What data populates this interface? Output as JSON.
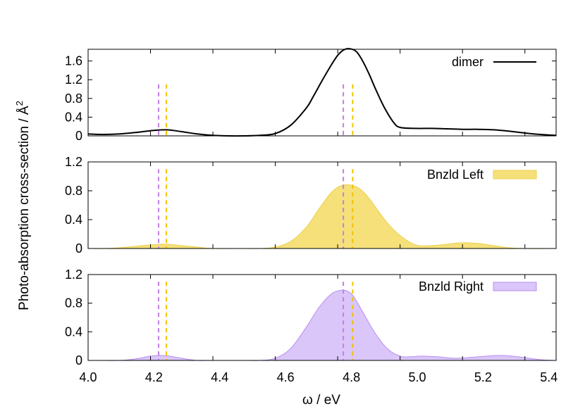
{
  "chart_data": {
    "type": "area",
    "xlabel": "ω / eV",
    "ylabel": "Photo-absorption cross-section / Å",
    "ylabel_superscript": "2",
    "xlim": [
      4.0,
      5.5
    ],
    "xticks": [
      "4.0",
      "4.2",
      "4.4",
      "4.6",
      "4.8",
      "5.0",
      "5.2",
      "5.4"
    ],
    "grid": false,
    "markers": {
      "colors": [
        "#c080e8",
        "#f2c200"
      ],
      "x": [
        4.226,
        4.251,
        4.818,
        4.848
      ],
      "pairs": [
        [
          4.226,
          4.251
        ],
        [
          4.818,
          4.848
        ]
      ]
    },
    "panels": [
      {
        "series_name": "dimer",
        "style": "line",
        "color": "#000000",
        "ylim": [
          0,
          1.85
        ],
        "yticks": [
          "0",
          "0.4",
          "0.8",
          "1.2",
          "1.6"
        ],
        "marker_top": 1.1,
        "legend_position": "top-right",
        "x": [
          4.0,
          4.05,
          4.1,
          4.15,
          4.2,
          4.25,
          4.3,
          4.35,
          4.4,
          4.45,
          4.5,
          4.55,
          4.6,
          4.65,
          4.7,
          4.72,
          4.75,
          4.78,
          4.8,
          4.82,
          4.84,
          4.86,
          4.88,
          4.9,
          4.92,
          4.95,
          4.98,
          5.0,
          5.05,
          5.1,
          5.15,
          5.2,
          5.25,
          5.3,
          5.35,
          5.4,
          5.45,
          5.5
        ],
        "y": [
          0.04,
          0.03,
          0.04,
          0.07,
          0.11,
          0.13,
          0.09,
          0.04,
          0.01,
          0.0,
          0.0,
          0.01,
          0.05,
          0.23,
          0.6,
          0.82,
          1.18,
          1.52,
          1.72,
          1.84,
          1.86,
          1.8,
          1.6,
          1.33,
          1.02,
          0.6,
          0.28,
          0.18,
          0.16,
          0.16,
          0.15,
          0.14,
          0.14,
          0.13,
          0.1,
          0.06,
          0.03,
          0.01
        ]
      },
      {
        "series_name": "Bnzld Left",
        "style": "filled",
        "color": "#f5e07a",
        "stroke": "#ecd14e",
        "ylim": [
          0,
          1.2
        ],
        "yticks": [
          "0",
          "0.4",
          "0.8",
          "1.2"
        ],
        "marker_top": 1.1,
        "legend_position": "top-right",
        "x": [
          4.0,
          4.05,
          4.1,
          4.15,
          4.2,
          4.25,
          4.3,
          4.35,
          4.4,
          4.5,
          4.55,
          4.6,
          4.65,
          4.7,
          4.74,
          4.78,
          4.81,
          4.84,
          4.87,
          4.9,
          4.93,
          4.96,
          5.0,
          5.05,
          5.1,
          5.15,
          5.2,
          5.25,
          5.3,
          5.35,
          5.4,
          5.5
        ],
        "y": [
          0.0,
          0.0,
          0.01,
          0.03,
          0.05,
          0.06,
          0.04,
          0.02,
          0.0,
          0.0,
          0.0,
          0.02,
          0.1,
          0.3,
          0.55,
          0.78,
          0.87,
          0.88,
          0.83,
          0.7,
          0.52,
          0.35,
          0.18,
          0.05,
          0.04,
          0.06,
          0.08,
          0.07,
          0.04,
          0.01,
          0.0,
          0.0
        ]
      },
      {
        "series_name": "Bnzld Right",
        "style": "filled",
        "color": "#dac6f8",
        "stroke": "#b88ef0",
        "ylim": [
          0,
          1.2
        ],
        "yticks": [
          "0",
          "0.4",
          "0.8",
          "1.2"
        ],
        "marker_top": 1.1,
        "legend_position": "top-right",
        "x": [
          4.0,
          4.05,
          4.1,
          4.15,
          4.2,
          4.23,
          4.26,
          4.3,
          4.35,
          4.4,
          4.5,
          4.55,
          4.6,
          4.65,
          4.7,
          4.74,
          4.78,
          4.81,
          4.83,
          4.85,
          4.88,
          4.92,
          4.96,
          5.0,
          5.03,
          5.07,
          5.12,
          5.18,
          5.25,
          5.32,
          5.38,
          5.45,
          5.5
        ],
        "y": [
          0.0,
          0.0,
          0.0,
          0.02,
          0.06,
          0.07,
          0.06,
          0.03,
          0.0,
          0.0,
          0.0,
          0.0,
          0.03,
          0.17,
          0.47,
          0.74,
          0.93,
          0.98,
          0.97,
          0.9,
          0.68,
          0.38,
          0.16,
          0.06,
          0.05,
          0.06,
          0.05,
          0.03,
          0.05,
          0.07,
          0.05,
          0.01,
          0.0
        ]
      }
    ]
  }
}
